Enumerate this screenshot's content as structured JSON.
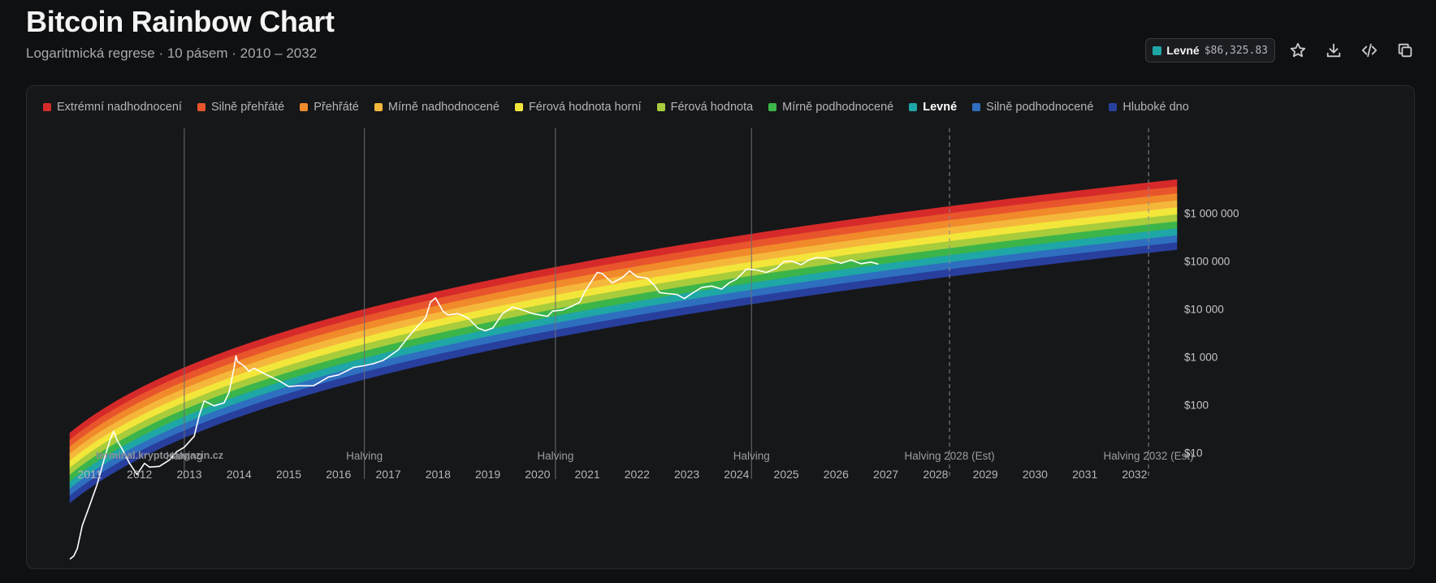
{
  "header": {
    "title": "Bitcoin Rainbow Chart",
    "subtitle": "Logaritmická regrese · 10 pásem · 2010 – 2032"
  },
  "toolbar": {
    "badge_label": "Levné",
    "badge_price": "$86,325.83",
    "badge_color": "#1fa6a6",
    "buttons": [
      {
        "name": "favorite-button",
        "icon": "star-icon"
      },
      {
        "name": "download-button",
        "icon": "download-icon"
      },
      {
        "name": "embed-button",
        "icon": "code-icon"
      },
      {
        "name": "copy-button",
        "icon": "copy-icon"
      }
    ]
  },
  "chart_data": {
    "type": "area",
    "x_range": [
      2010.6,
      2032.85
    ],
    "y_scale": "log",
    "grid": false,
    "legend_position": "top-left",
    "watermark": "terminal.kryptomagazin.cz",
    "bands": [
      {
        "name": "Extrémní nadhodnocení",
        "color": "#d62a2a"
      },
      {
        "name": "Silně přehřáté",
        "color": "#e8552c"
      },
      {
        "name": "Přehřáté",
        "color": "#f18a2a"
      },
      {
        "name": "Mírně nadhodnocené",
        "color": "#f5b73b"
      },
      {
        "name": "Férová hodnota horní",
        "color": "#f3e63a"
      },
      {
        "name": "Férová hodnota",
        "color": "#a8cc3b"
      },
      {
        "name": "Mírně podhodnocené",
        "color": "#3bb54a"
      },
      {
        "name": "Levné",
        "color": "#1fa6a6",
        "active": true
      },
      {
        "name": "Silně podhodnocené",
        "color": "#2f6fbf"
      },
      {
        "name": "Hluboké dno",
        "color": "#283f9e"
      }
    ],
    "y_ticks": [
      {
        "value": 1000000,
        "label": "$1 000 000"
      },
      {
        "value": 100000,
        "label": "$100 000"
      },
      {
        "value": 10000,
        "label": "$10 000"
      },
      {
        "value": 1000,
        "label": "$1 000"
      },
      {
        "value": 100,
        "label": "$100"
      },
      {
        "value": 10,
        "label": "$10"
      }
    ],
    "x_ticks": [
      "2011",
      "2012",
      "2013",
      "2014",
      "2015",
      "2016",
      "2017",
      "2018",
      "2019",
      "2020",
      "2021",
      "2022",
      "2023",
      "2024",
      "2025",
      "2026",
      "2027",
      "2028",
      "2029",
      "2030",
      "2031",
      "2032"
    ],
    "halvings": [
      {
        "x": 2012.9,
        "label": "Halving",
        "estimated": false
      },
      {
        "x": 2016.52,
        "label": "Halving",
        "estimated": false
      },
      {
        "x": 2020.36,
        "label": "Halving",
        "estimated": false
      },
      {
        "x": 2024.3,
        "label": "Halving",
        "estimated": false
      },
      {
        "x": 2028.28,
        "label": "Halving 2028 (Est)",
        "estimated": true
      },
      {
        "x": 2032.28,
        "label": "Halving 2032 (Est)",
        "estimated": true
      }
    ],
    "price_series": {
      "name": "BTC",
      "x": [
        2010.6,
        2010.68,
        2010.75,
        2010.85,
        2011.0,
        2011.15,
        2011.3,
        2011.42,
        2011.48,
        2011.55,
        2011.65,
        2011.8,
        2011.95,
        2012.1,
        2012.2,
        2012.4,
        2012.6,
        2012.75,
        2012.9,
        2013.1,
        2013.2,
        2013.3,
        2013.5,
        2013.7,
        2013.8,
        2013.9,
        2013.94,
        2013.97,
        2014.1,
        2014.2,
        2014.3,
        2014.5,
        2014.8,
        2015.0,
        2015.2,
        2015.5,
        2015.8,
        2016.0,
        2016.3,
        2016.5,
        2016.7,
        2016.9,
        2017.0,
        2017.2,
        2017.4,
        2017.6,
        2017.75,
        2017.85,
        2017.95,
        2018.1,
        2018.2,
        2018.4,
        2018.6,
        2018.8,
        2018.95,
        2019.1,
        2019.3,
        2019.5,
        2019.7,
        2019.9,
        2020.2,
        2020.3,
        2020.5,
        2020.7,
        2020.85,
        2020.95,
        2021.1,
        2021.2,
        2021.3,
        2021.5,
        2021.7,
        2021.85,
        2022.0,
        2022.2,
        2022.35,
        2022.45,
        2022.6,
        2022.8,
        2022.95,
        2023.1,
        2023.3,
        2023.5,
        2023.7,
        2023.85,
        2024.0,
        2024.2,
        2024.4,
        2024.6,
        2024.8,
        2024.95,
        2025.1,
        2025.3,
        2025.45,
        2025.6,
        2025.8,
        2025.95,
        2026.1,
        2026.3,
        2026.5,
        2026.7,
        2026.85
      ],
      "y": [
        0.06,
        0.07,
        0.1,
        0.3,
        0.8,
        2.2,
        8,
        20,
        28,
        18,
        12,
        6,
        3.5,
        6,
        5,
        5.2,
        7,
        10.5,
        13,
        22,
        60,
        120,
        95,
        110,
        180,
        600,
        1050,
        800,
        650,
        500,
        580,
        450,
        320,
        240,
        250,
        250,
        380,
        420,
        600,
        650,
        720,
        850,
        1000,
        1400,
        2600,
        4500,
        6500,
        14000,
        17000,
        9000,
        7500,
        8000,
        6500,
        4000,
        3500,
        4000,
        8000,
        11000,
        9500,
        8000,
        7000,
        9000,
        9500,
        11500,
        14000,
        23000,
        40000,
        58000,
        55000,
        35000,
        45000,
        62000,
        47000,
        44000,
        31000,
        22000,
        21000,
        20000,
        16500,
        21000,
        28000,
        30000,
        26000,
        35000,
        42000,
        68000,
        65000,
        58000,
        70000,
        97000,
        100000,
        84000,
        105000,
        118000,
        115000,
        102000,
        90000,
        105000,
        88000,
        95000,
        86325
      ]
    }
  }
}
